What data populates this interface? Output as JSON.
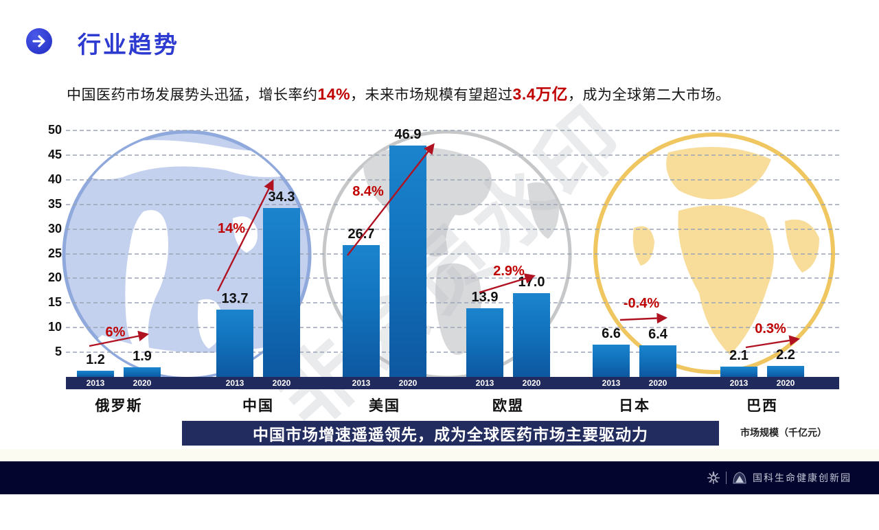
{
  "header": {
    "title": "行业趋势",
    "icon": "arrow-right-circle-icon"
  },
  "subtitle": {
    "segments": [
      {
        "text": "中国医药市场发展势头迅猛，增长率约",
        "highlight": false
      },
      {
        "text": "14%",
        "highlight": true
      },
      {
        "text": "，未来市场规模有望超过",
        "highlight": false
      },
      {
        "text": "3.4万亿",
        "highlight": true
      },
      {
        "text": "，成为全球第二大市场。",
        "highlight": false
      }
    ]
  },
  "chart_data": {
    "type": "bar",
    "title": "",
    "unit_note": "市场规模（千亿元）",
    "categories": [
      "俄罗斯",
      "中国",
      "美国",
      "欧盟",
      "日本",
      "巴西"
    ],
    "series": [
      {
        "name": "2013",
        "values": [
          1.2,
          13.7,
          26.7,
          13.9,
          6.6,
          2.1
        ],
        "labels": [
          "1.2",
          "13.7",
          "26.7",
          "13.9",
          "6.6",
          "2.1"
        ]
      },
      {
        "name": "2020",
        "values": [
          1.9,
          34.3,
          46.9,
          17.0,
          6.4,
          2.2
        ],
        "labels": [
          "1.9",
          "34.3",
          "46.9",
          "17.0",
          "6.4",
          "2.2"
        ]
      }
    ],
    "growth_labels": [
      "6%",
      "14%",
      "8.4%",
      "2.9%",
      "-0.4%",
      "0.3%"
    ],
    "ylim": [
      0,
      50
    ],
    "ytick_step": 5,
    "grid": "horizontal-dashed",
    "legend": "none",
    "colors": {
      "bar_top": "#1b84cd",
      "bar_bottom": "#0d57a0",
      "axis_band": "#212a5c",
      "growth_red": "#c00000",
      "arrow_red": "#b01222"
    }
  },
  "banner": {
    "text": "中国市场增速遥遥领先，成为全球医药市场主要驱动力"
  },
  "watermark": {
    "text": "非会员水印"
  },
  "footer": {
    "brand": "国科生命健康创新园",
    "icons": [
      "starburst-icon",
      "mountain-icon"
    ]
  }
}
